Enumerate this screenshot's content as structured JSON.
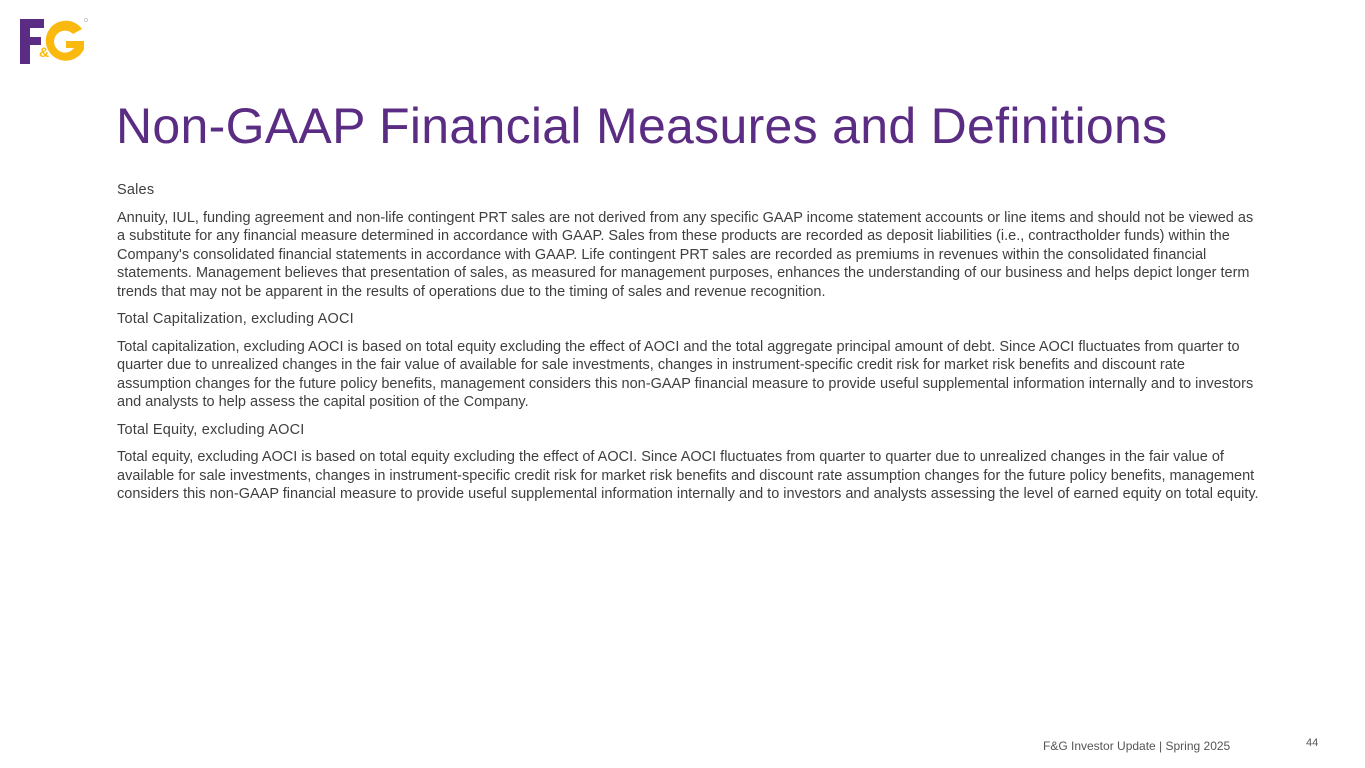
{
  "logo": {
    "text": "F&G",
    "colors": {
      "purple": "#5b2c83",
      "gold": "#f9b90e"
    }
  },
  "title": "Non-GAAP Financial Measures and Definitions",
  "sections": [
    {
      "heading": "Sales",
      "body": "Annuity, IUL, funding agreement and non-life contingent PRT sales are not derived from any specific GAAP income statement accounts or line items and should not be viewed as a substitute for any financial measure determined in accordance with GAAP.  Sales from these products are recorded as deposit liabilities (i.e., contractholder funds) within the Company's consolidated financial statements in accordance with GAAP.  Life contingent PRT sales are recorded as premiums in revenues within the consolidated financial statements. Management believes that presentation of sales, as measured for management purposes, enhances the understanding of our business and helps depict longer term trends that may not be apparent in the results of operations due to the timing of sales and revenue recognition."
    },
    {
      "heading": "Total Capitalization, excluding AOCI",
      "body": "Total capitalization, excluding AOCI is based on total equity excluding the effect of AOCI and the total aggregate principal amount of debt.  Since AOCI fluctuates from quarter to quarter due to unrealized changes in the fair value of available for sale investments, changes in instrument-specific credit risk for market risk benefits and discount rate assumption changes for the future policy benefits, management considers this non-GAAP financial measure to provide useful supplemental information internally and to investors and analysts to help assess the capital position of the Company."
    },
    {
      "heading": "Total Equity, excluding AOCI",
      "body": "Total equity, excluding AOCI is based on total equity excluding the effect of AOCI. Since AOCI fluctuates from quarter to quarter due to unrealized changes in the fair value of available for sale investments, changes in instrument-specific credit risk for market risk benefits and discount rate assumption changes for the future policy benefits, management considers this non-GAAP financial measure to provide useful supplemental information internally and to investors and analysts assessing the level of earned equity on total equity."
    }
  ],
  "footer": {
    "text": "F&G Investor Update | Spring 2025",
    "page": "44"
  }
}
